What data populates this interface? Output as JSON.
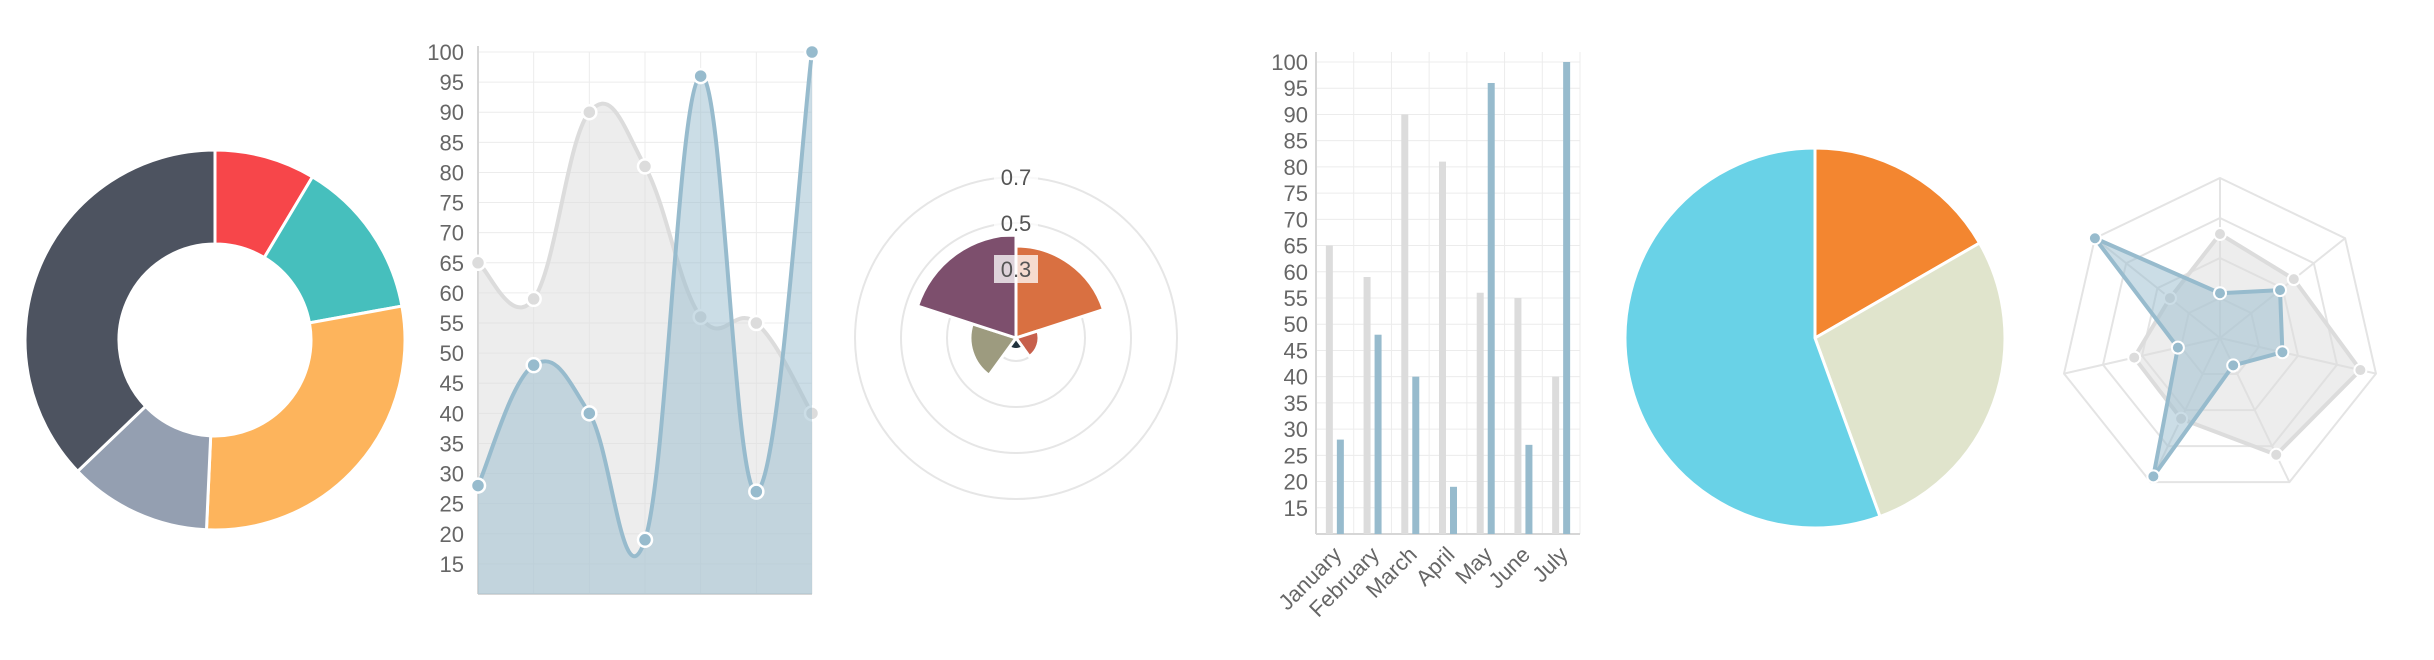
{
  "chart_data": [
    {
      "type": "doughnut",
      "values": [
        12,
        19,
        40,
        17,
        52
      ],
      "colors": [
        "#F7464A",
        "#46BFBD",
        "#FDB45C",
        "#949FB1",
        "#4D5360"
      ]
    },
    {
      "type": "line",
      "categories": [
        "",
        "",
        "",
        "",
        "",
        "",
        ""
      ],
      "series": [
        {
          "values": [
            65,
            59,
            90,
            81,
            56,
            55,
            40
          ],
          "color": "#DCDCDC",
          "fill": "rgba(220,220,220,0.5)"
        },
        {
          "values": [
            28,
            48,
            40,
            19,
            96,
            27,
            100
          ],
          "color": "#97BBCD",
          "fill": "rgba(151,187,205,0.5)"
        }
      ],
      "yticks": [
        15,
        20,
        25,
        30,
        35,
        40,
        45,
        50,
        55,
        60,
        65,
        70,
        75,
        80,
        85,
        90,
        95,
        100
      ],
      "ylim": [
        10,
        100
      ],
      "grid": true
    },
    {
      "type": "polarArea",
      "values": [
        0.4,
        0.1,
        0.05,
        0.2,
        0.45
      ],
      "colors": [
        "#D97041",
        "#C7604C",
        "#21323D",
        "#9D9B7F",
        "#7D4F6D"
      ],
      "ticks": [
        "0.3",
        "0.5",
        "0.7"
      ],
      "tick_values": [
        0.3,
        0.5,
        0.7
      ],
      "rmax": 0.8
    },
    {
      "type": "bar",
      "categories": [
        "January",
        "February",
        "March",
        "April",
        "May",
        "June",
        "July"
      ],
      "series": [
        {
          "values": [
            65,
            59,
            90,
            81,
            56,
            55,
            40
          ],
          "color": "#DCDCDC"
        },
        {
          "values": [
            28,
            48,
            40,
            19,
            96,
            27,
            100
          ],
          "color": "#97BBCD"
        }
      ],
      "yticks": [
        15,
        20,
        25,
        30,
        35,
        40,
        45,
        50,
        55,
        60,
        65,
        70,
        75,
        80,
        85,
        90,
        95,
        100
      ],
      "ylim": [
        10,
        100
      ],
      "grid": true
    },
    {
      "type": "pie",
      "values": [
        30,
        50,
        100
      ],
      "colors": [
        "#F38630",
        "#E0E4CC",
        "#69D2E7"
      ]
    },
    {
      "type": "radar",
      "categories": [
        "",
        "",
        "",
        "",
        "",
        "",
        ""
      ],
      "series": [
        {
          "values": [
            65,
            59,
            90,
            81,
            56,
            55,
            40
          ],
          "color": "#DCDCDC",
          "fill": "rgba(220,220,220,0.5)"
        },
        {
          "values": [
            28,
            48,
            40,
            19,
            96,
            27,
            100
          ],
          "color": "#97BBCD",
          "fill": "rgba(151,187,205,0.5)"
        }
      ],
      "rmax": 100,
      "rings": 4
    }
  ]
}
